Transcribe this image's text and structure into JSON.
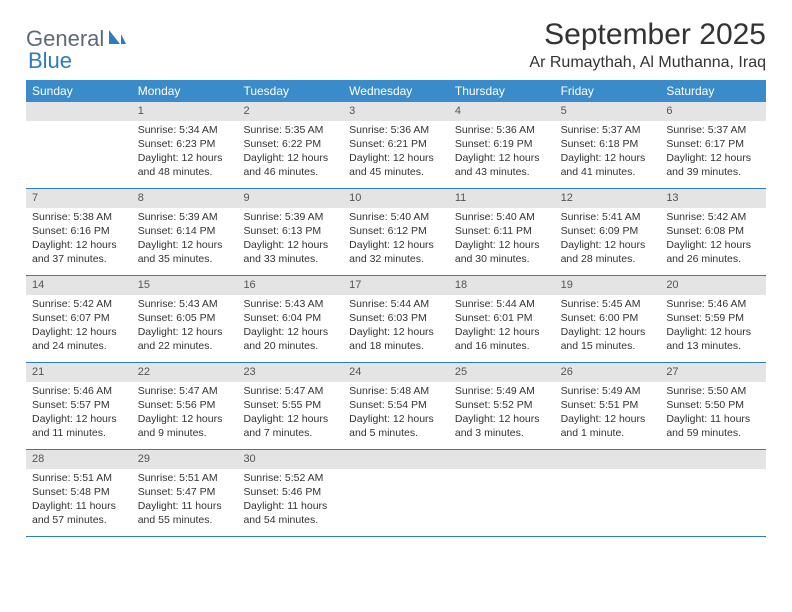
{
  "logo": {
    "word1": "General",
    "word2": "Blue"
  },
  "title": "September 2025",
  "location": "Ar Rumaythah, Al Muthanna, Iraq",
  "colors": {
    "header_bg": "#3a8bc9",
    "header_text": "#ffffff",
    "daynum_bg": "#e4e4e4",
    "week_border": "#2f7bbf",
    "logo_gray": "#5f6a72",
    "logo_blue": "#2f7bbf",
    "text": "#333333"
  },
  "fonts": {
    "title_size": 30,
    "location_size": 16,
    "dayheader_size": 12,
    "cell_size": 10.5
  },
  "dayNames": [
    "Sunday",
    "Monday",
    "Tuesday",
    "Wednesday",
    "Thursday",
    "Friday",
    "Saturday"
  ],
  "labels": {
    "sunrise": "Sunrise:",
    "sunset": "Sunset:",
    "daylight": "Daylight:"
  },
  "weeks": [
    [
      {
        "day": "",
        "sunrise": "",
        "sunset": "",
        "daylight": ""
      },
      {
        "day": "1",
        "sunrise": "5:34 AM",
        "sunset": "6:23 PM",
        "daylight": "12 hours and 48 minutes."
      },
      {
        "day": "2",
        "sunrise": "5:35 AM",
        "sunset": "6:22 PM",
        "daylight": "12 hours and 46 minutes."
      },
      {
        "day": "3",
        "sunrise": "5:36 AM",
        "sunset": "6:21 PM",
        "daylight": "12 hours and 45 minutes."
      },
      {
        "day": "4",
        "sunrise": "5:36 AM",
        "sunset": "6:19 PM",
        "daylight": "12 hours and 43 minutes."
      },
      {
        "day": "5",
        "sunrise": "5:37 AM",
        "sunset": "6:18 PM",
        "daylight": "12 hours and 41 minutes."
      },
      {
        "day": "6",
        "sunrise": "5:37 AM",
        "sunset": "6:17 PM",
        "daylight": "12 hours and 39 minutes."
      }
    ],
    [
      {
        "day": "7",
        "sunrise": "5:38 AM",
        "sunset": "6:16 PM",
        "daylight": "12 hours and 37 minutes."
      },
      {
        "day": "8",
        "sunrise": "5:39 AM",
        "sunset": "6:14 PM",
        "daylight": "12 hours and 35 minutes."
      },
      {
        "day": "9",
        "sunrise": "5:39 AM",
        "sunset": "6:13 PM",
        "daylight": "12 hours and 33 minutes."
      },
      {
        "day": "10",
        "sunrise": "5:40 AM",
        "sunset": "6:12 PM",
        "daylight": "12 hours and 32 minutes."
      },
      {
        "day": "11",
        "sunrise": "5:40 AM",
        "sunset": "6:11 PM",
        "daylight": "12 hours and 30 minutes."
      },
      {
        "day": "12",
        "sunrise": "5:41 AM",
        "sunset": "6:09 PM",
        "daylight": "12 hours and 28 minutes."
      },
      {
        "day": "13",
        "sunrise": "5:42 AM",
        "sunset": "6:08 PM",
        "daylight": "12 hours and 26 minutes."
      }
    ],
    [
      {
        "day": "14",
        "sunrise": "5:42 AM",
        "sunset": "6:07 PM",
        "daylight": "12 hours and 24 minutes."
      },
      {
        "day": "15",
        "sunrise": "5:43 AM",
        "sunset": "6:05 PM",
        "daylight": "12 hours and 22 minutes."
      },
      {
        "day": "16",
        "sunrise": "5:43 AM",
        "sunset": "6:04 PM",
        "daylight": "12 hours and 20 minutes."
      },
      {
        "day": "17",
        "sunrise": "5:44 AM",
        "sunset": "6:03 PM",
        "daylight": "12 hours and 18 minutes."
      },
      {
        "day": "18",
        "sunrise": "5:44 AM",
        "sunset": "6:01 PM",
        "daylight": "12 hours and 16 minutes."
      },
      {
        "day": "19",
        "sunrise": "5:45 AM",
        "sunset": "6:00 PM",
        "daylight": "12 hours and 15 minutes."
      },
      {
        "day": "20",
        "sunrise": "5:46 AM",
        "sunset": "5:59 PM",
        "daylight": "12 hours and 13 minutes."
      }
    ],
    [
      {
        "day": "21",
        "sunrise": "5:46 AM",
        "sunset": "5:57 PM",
        "daylight": "12 hours and 11 minutes."
      },
      {
        "day": "22",
        "sunrise": "5:47 AM",
        "sunset": "5:56 PM",
        "daylight": "12 hours and 9 minutes."
      },
      {
        "day": "23",
        "sunrise": "5:47 AM",
        "sunset": "5:55 PM",
        "daylight": "12 hours and 7 minutes."
      },
      {
        "day": "24",
        "sunrise": "5:48 AM",
        "sunset": "5:54 PM",
        "daylight": "12 hours and 5 minutes."
      },
      {
        "day": "25",
        "sunrise": "5:49 AM",
        "sunset": "5:52 PM",
        "daylight": "12 hours and 3 minutes."
      },
      {
        "day": "26",
        "sunrise": "5:49 AM",
        "sunset": "5:51 PM",
        "daylight": "12 hours and 1 minute."
      },
      {
        "day": "27",
        "sunrise": "5:50 AM",
        "sunset": "5:50 PM",
        "daylight": "11 hours and 59 minutes."
      }
    ],
    [
      {
        "day": "28",
        "sunrise": "5:51 AM",
        "sunset": "5:48 PM",
        "daylight": "11 hours and 57 minutes."
      },
      {
        "day": "29",
        "sunrise": "5:51 AM",
        "sunset": "5:47 PM",
        "daylight": "11 hours and 55 minutes."
      },
      {
        "day": "30",
        "sunrise": "5:52 AM",
        "sunset": "5:46 PM",
        "daylight": "11 hours and 54 minutes."
      },
      {
        "day": "",
        "sunrise": "",
        "sunset": "",
        "daylight": ""
      },
      {
        "day": "",
        "sunrise": "",
        "sunset": "",
        "daylight": ""
      },
      {
        "day": "",
        "sunrise": "",
        "sunset": "",
        "daylight": ""
      },
      {
        "day": "",
        "sunrise": "",
        "sunset": "",
        "daylight": ""
      }
    ]
  ]
}
